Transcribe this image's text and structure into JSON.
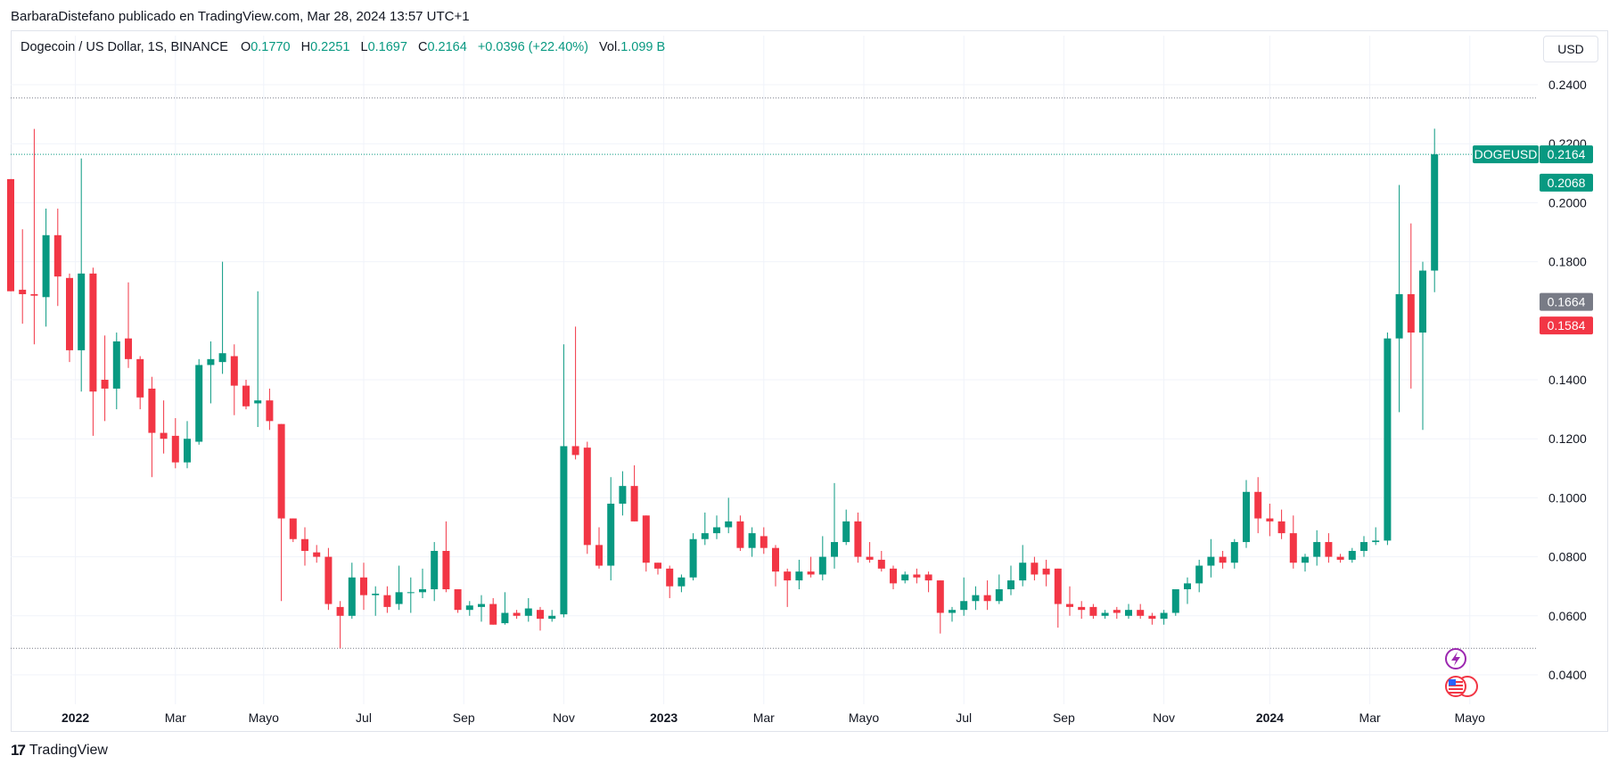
{
  "header": {
    "credit": "BarbaraDistefano publicado en TradingView.com, Mar 28, 2024 13:57 UTC+1"
  },
  "legend": {
    "symbol": "Dogecoin / US Dollar, 1S, BINANCE",
    "open_label": "O",
    "open": "0.1770",
    "high_label": "H",
    "high": "0.2251",
    "low_label": "L",
    "low": "0.1697",
    "close_label": "C",
    "close": "0.2164",
    "change": "+0.0396 (+22.40%)",
    "vol_label": "Vol.",
    "vol": "1.099 B"
  },
  "currency": "USD",
  "footer": {
    "brand": "TradingView",
    "logo": "17"
  },
  "colors": {
    "up": "#089981",
    "down": "#f23645",
    "grid": "#f0f3fa",
    "text": "#131722",
    "gray_badge": "#787b86"
  },
  "chart_data": {
    "type": "candlestick",
    "symbol": "DOGEUSD",
    "timeframe": "1S",
    "y_axis": {
      "min": 0.03,
      "max": 0.25,
      "ticks": [
        "0.2400",
        "0.2200",
        "0.2000",
        "0.1800",
        "0.1400",
        "0.1200",
        "0.1000",
        "0.0800",
        "0.0600",
        "0.0400"
      ]
    },
    "x_axis_labels": [
      {
        "label": "2022",
        "bold": true,
        "x": 5.5
      },
      {
        "label": "Mar",
        "bold": false,
        "x": 14
      },
      {
        "label": "Mayo",
        "bold": false,
        "x": 21.5
      },
      {
        "label": "Jul",
        "bold": false,
        "x": 30
      },
      {
        "label": "Sep",
        "bold": false,
        "x": 38.5
      },
      {
        "label": "Nov",
        "bold": false,
        "x": 47
      },
      {
        "label": "2023",
        "bold": true,
        "x": 55.5
      },
      {
        "label": "Mar",
        "bold": false,
        "x": 64
      },
      {
        "label": "Mayo",
        "bold": false,
        "x": 72.5
      },
      {
        "label": "Jul",
        "bold": false,
        "x": 81
      },
      {
        "label": "Sep",
        "bold": false,
        "x": 89.5
      },
      {
        "label": "Nov",
        "bold": false,
        "x": 98
      },
      {
        "label": "2024",
        "bold": true,
        "x": 107
      },
      {
        "label": "Mar",
        "bold": false,
        "x": 115.5
      },
      {
        "label": "Mayo",
        "bold": false,
        "x": 124
      }
    ],
    "price_badges": [
      {
        "label": "DOGEUSD",
        "value": "0.2164",
        "price": 0.2164,
        "color": "#089981"
      },
      {
        "label": "",
        "value": "0.2068",
        "price": 0.2068,
        "color": "#089981"
      },
      {
        "label": "",
        "value": "0.1664",
        "price": 0.1664,
        "color": "#787b86"
      },
      {
        "label": "",
        "value": "0.1584",
        "price": 0.1584,
        "color": "#f23645"
      }
    ],
    "horizontal_lines": [
      {
        "price": 0.2164,
        "style": "dotted",
        "color": "#089981"
      },
      {
        "price": 0.2355,
        "style": "dotted",
        "color": "#787b86"
      },
      {
        "price": 0.049,
        "style": "dotted",
        "color": "#787b86"
      }
    ],
    "candles": [
      {
        "o": 0.208,
        "h": 0.208,
        "l": 0.17,
        "c": 0.17
      },
      {
        "o": 0.1705,
        "h": 0.191,
        "l": 0.159,
        "c": 0.169
      },
      {
        "o": 0.169,
        "h": 0.225,
        "l": 0.152,
        "c": 0.1685
      },
      {
        "o": 0.168,
        "h": 0.198,
        "l": 0.158,
        "c": 0.189
      },
      {
        "o": 0.189,
        "h": 0.198,
        "l": 0.165,
        "c": 0.175
      },
      {
        "o": 0.1745,
        "h": 0.176,
        "l": 0.146,
        "c": 0.15
      },
      {
        "o": 0.15,
        "h": 0.215,
        "l": 0.136,
        "c": 0.176
      },
      {
        "o": 0.176,
        "h": 0.178,
        "l": 0.121,
        "c": 0.136
      },
      {
        "o": 0.14,
        "h": 0.155,
        "l": 0.126,
        "c": 0.137
      },
      {
        "o": 0.137,
        "h": 0.156,
        "l": 0.13,
        "c": 0.153
      },
      {
        "o": 0.154,
        "h": 0.173,
        "l": 0.144,
        "c": 0.147
      },
      {
        "o": 0.147,
        "h": 0.148,
        "l": 0.13,
        "c": 0.134
      },
      {
        "o": 0.137,
        "h": 0.141,
        "l": 0.107,
        "c": 0.122
      },
      {
        "o": 0.122,
        "h": 0.133,
        "l": 0.115,
        "c": 0.12
      },
      {
        "o": 0.121,
        "h": 0.127,
        "l": 0.11,
        "c": 0.112
      },
      {
        "o": 0.112,
        "h": 0.126,
        "l": 0.11,
        "c": 0.12
      },
      {
        "o": 0.119,
        "h": 0.147,
        "l": 0.118,
        "c": 0.145
      },
      {
        "o": 0.145,
        "h": 0.153,
        "l": 0.132,
        "c": 0.147
      },
      {
        "o": 0.146,
        "h": 0.18,
        "l": 0.142,
        "c": 0.149
      },
      {
        "o": 0.148,
        "h": 0.152,
        "l": 0.128,
        "c": 0.138
      },
      {
        "o": 0.138,
        "h": 0.14,
        "l": 0.13,
        "c": 0.131
      },
      {
        "o": 0.132,
        "h": 0.17,
        "l": 0.124,
        "c": 0.133
      },
      {
        "o": 0.133,
        "h": 0.137,
        "l": 0.123,
        "c": 0.126
      },
      {
        "o": 0.125,
        "h": 0.125,
        "l": 0.065,
        "c": 0.093
      },
      {
        "o": 0.093,
        "h": 0.093,
        "l": 0.085,
        "c": 0.086
      },
      {
        "o": 0.086,
        "h": 0.09,
        "l": 0.077,
        "c": 0.082
      },
      {
        "o": 0.0815,
        "h": 0.084,
        "l": 0.078,
        "c": 0.08
      },
      {
        "o": 0.08,
        "h": 0.083,
        "l": 0.062,
        "c": 0.064
      },
      {
        "o": 0.063,
        "h": 0.065,
        "l": 0.049,
        "c": 0.06
      },
      {
        "o": 0.06,
        "h": 0.078,
        "l": 0.059,
        "c": 0.073
      },
      {
        "o": 0.073,
        "h": 0.078,
        "l": 0.062,
        "c": 0.067
      },
      {
        "o": 0.067,
        "h": 0.07,
        "l": 0.06,
        "c": 0.0675
      },
      {
        "o": 0.067,
        "h": 0.07,
        "l": 0.061,
        "c": 0.063
      },
      {
        "o": 0.064,
        "h": 0.077,
        "l": 0.062,
        "c": 0.068
      },
      {
        "o": 0.068,
        "h": 0.073,
        "l": 0.061,
        "c": 0.068
      },
      {
        "o": 0.068,
        "h": 0.076,
        "l": 0.066,
        "c": 0.069
      },
      {
        "o": 0.069,
        "h": 0.085,
        "l": 0.065,
        "c": 0.082
      },
      {
        "o": 0.082,
        "h": 0.092,
        "l": 0.068,
        "c": 0.069
      },
      {
        "o": 0.069,
        "h": 0.069,
        "l": 0.061,
        "c": 0.062
      },
      {
        "o": 0.062,
        "h": 0.065,
        "l": 0.06,
        "c": 0.0635
      },
      {
        "o": 0.063,
        "h": 0.067,
        "l": 0.058,
        "c": 0.064
      },
      {
        "o": 0.064,
        "h": 0.066,
        "l": 0.057,
        "c": 0.057
      },
      {
        "o": 0.0575,
        "h": 0.068,
        "l": 0.057,
        "c": 0.061
      },
      {
        "o": 0.061,
        "h": 0.062,
        "l": 0.059,
        "c": 0.06
      },
      {
        "o": 0.06,
        "h": 0.066,
        "l": 0.058,
        "c": 0.0625
      },
      {
        "o": 0.062,
        "h": 0.063,
        "l": 0.055,
        "c": 0.059
      },
      {
        "o": 0.059,
        "h": 0.062,
        "l": 0.058,
        "c": 0.06
      },
      {
        "o": 0.0605,
        "h": 0.152,
        "l": 0.0595,
        "c": 0.1175
      },
      {
        "o": 0.1175,
        "h": 0.158,
        "l": 0.113,
        "c": 0.1145
      },
      {
        "o": 0.117,
        "h": 0.119,
        "l": 0.081,
        "c": 0.084
      },
      {
        "o": 0.084,
        "h": 0.09,
        "l": 0.076,
        "c": 0.077
      },
      {
        "o": 0.077,
        "h": 0.107,
        "l": 0.072,
        "c": 0.098
      },
      {
        "o": 0.098,
        "h": 0.109,
        "l": 0.094,
        "c": 0.104
      },
      {
        "o": 0.104,
        "h": 0.111,
        "l": 0.092,
        "c": 0.092
      },
      {
        "o": 0.094,
        "h": 0.094,
        "l": 0.075,
        "c": 0.078
      },
      {
        "o": 0.078,
        "h": 0.078,
        "l": 0.074,
        "c": 0.076
      },
      {
        "o": 0.076,
        "h": 0.077,
        "l": 0.066,
        "c": 0.07
      },
      {
        "o": 0.07,
        "h": 0.074,
        "l": 0.068,
        "c": 0.073
      },
      {
        "o": 0.073,
        "h": 0.088,
        "l": 0.072,
        "c": 0.086
      },
      {
        "o": 0.086,
        "h": 0.095,
        "l": 0.084,
        "c": 0.088
      },
      {
        "o": 0.088,
        "h": 0.094,
        "l": 0.086,
        "c": 0.09
      },
      {
        "o": 0.09,
        "h": 0.1,
        "l": 0.088,
        "c": 0.092
      },
      {
        "o": 0.092,
        "h": 0.094,
        "l": 0.082,
        "c": 0.083
      },
      {
        "o": 0.083,
        "h": 0.09,
        "l": 0.08,
        "c": 0.088
      },
      {
        "o": 0.087,
        "h": 0.09,
        "l": 0.081,
        "c": 0.083
      },
      {
        "o": 0.083,
        "h": 0.084,
        "l": 0.07,
        "c": 0.075
      },
      {
        "o": 0.075,
        "h": 0.076,
        "l": 0.063,
        "c": 0.072
      },
      {
        "o": 0.072,
        "h": 0.079,
        "l": 0.069,
        "c": 0.075
      },
      {
        "o": 0.075,
        "h": 0.08,
        "l": 0.073,
        "c": 0.074
      },
      {
        "o": 0.074,
        "h": 0.087,
        "l": 0.072,
        "c": 0.08
      },
      {
        "o": 0.08,
        "h": 0.105,
        "l": 0.076,
        "c": 0.085
      },
      {
        "o": 0.085,
        "h": 0.096,
        "l": 0.084,
        "c": 0.092
      },
      {
        "o": 0.092,
        "h": 0.095,
        "l": 0.078,
        "c": 0.08
      },
      {
        "o": 0.08,
        "h": 0.085,
        "l": 0.078,
        "c": 0.079
      },
      {
        "o": 0.079,
        "h": 0.082,
        "l": 0.075,
        "c": 0.076
      },
      {
        "o": 0.076,
        "h": 0.077,
        "l": 0.069,
        "c": 0.071
      },
      {
        "o": 0.072,
        "h": 0.075,
        "l": 0.071,
        "c": 0.074
      },
      {
        "o": 0.074,
        "h": 0.076,
        "l": 0.071,
        "c": 0.073
      },
      {
        "o": 0.074,
        "h": 0.075,
        "l": 0.068,
        "c": 0.072
      },
      {
        "o": 0.072,
        "h": 0.072,
        "l": 0.054,
        "c": 0.061
      },
      {
        "o": 0.061,
        "h": 0.063,
        "l": 0.058,
        "c": 0.062
      },
      {
        "o": 0.062,
        "h": 0.073,
        "l": 0.06,
        "c": 0.065
      },
      {
        "o": 0.065,
        "h": 0.07,
        "l": 0.062,
        "c": 0.067
      },
      {
        "o": 0.067,
        "h": 0.072,
        "l": 0.062,
        "c": 0.065
      },
      {
        "o": 0.065,
        "h": 0.074,
        "l": 0.064,
        "c": 0.069
      },
      {
        "o": 0.069,
        "h": 0.077,
        "l": 0.067,
        "c": 0.072
      },
      {
        "o": 0.072,
        "h": 0.084,
        "l": 0.07,
        "c": 0.078
      },
      {
        "o": 0.078,
        "h": 0.08,
        "l": 0.072,
        "c": 0.074
      },
      {
        "o": 0.076,
        "h": 0.079,
        "l": 0.07,
        "c": 0.074
      },
      {
        "o": 0.076,
        "h": 0.076,
        "l": 0.056,
        "c": 0.064
      },
      {
        "o": 0.064,
        "h": 0.07,
        "l": 0.06,
        "c": 0.063
      },
      {
        "o": 0.063,
        "h": 0.065,
        "l": 0.059,
        "c": 0.062
      },
      {
        "o": 0.063,
        "h": 0.064,
        "l": 0.059,
        "c": 0.06
      },
      {
        "o": 0.06,
        "h": 0.062,
        "l": 0.059,
        "c": 0.061
      },
      {
        "o": 0.062,
        "h": 0.063,
        "l": 0.059,
        "c": 0.061
      },
      {
        "o": 0.06,
        "h": 0.064,
        "l": 0.059,
        "c": 0.062
      },
      {
        "o": 0.062,
        "h": 0.064,
        "l": 0.059,
        "c": 0.06
      },
      {
        "o": 0.06,
        "h": 0.061,
        "l": 0.057,
        "c": 0.059
      },
      {
        "o": 0.059,
        "h": 0.062,
        "l": 0.057,
        "c": 0.061
      },
      {
        "o": 0.061,
        "h": 0.069,
        "l": 0.06,
        "c": 0.069
      },
      {
        "o": 0.069,
        "h": 0.073,
        "l": 0.064,
        "c": 0.071
      },
      {
        "o": 0.071,
        "h": 0.079,
        "l": 0.068,
        "c": 0.077
      },
      {
        "o": 0.077,
        "h": 0.086,
        "l": 0.073,
        "c": 0.08
      },
      {
        "o": 0.08,
        "h": 0.082,
        "l": 0.076,
        "c": 0.078
      },
      {
        "o": 0.078,
        "h": 0.086,
        "l": 0.076,
        "c": 0.085
      },
      {
        "o": 0.085,
        "h": 0.106,
        "l": 0.083,
        "c": 0.102
      },
      {
        "o": 0.102,
        "h": 0.107,
        "l": 0.088,
        "c": 0.093
      },
      {
        "o": 0.093,
        "h": 0.098,
        "l": 0.087,
        "c": 0.092
      },
      {
        "o": 0.092,
        "h": 0.096,
        "l": 0.086,
        "c": 0.088
      },
      {
        "o": 0.088,
        "h": 0.094,
        "l": 0.076,
        "c": 0.078
      },
      {
        "o": 0.078,
        "h": 0.081,
        "l": 0.075,
        "c": 0.08
      },
      {
        "o": 0.08,
        "h": 0.089,
        "l": 0.077,
        "c": 0.085
      },
      {
        "o": 0.085,
        "h": 0.088,
        "l": 0.078,
        "c": 0.08
      },
      {
        "o": 0.08,
        "h": 0.081,
        "l": 0.078,
        "c": 0.079
      },
      {
        "o": 0.079,
        "h": 0.083,
        "l": 0.078,
        "c": 0.082
      },
      {
        "o": 0.082,
        "h": 0.087,
        "l": 0.08,
        "c": 0.085
      },
      {
        "o": 0.085,
        "h": 0.09,
        "l": 0.084,
        "c": 0.0855
      },
      {
        "o": 0.0855,
        "h": 0.156,
        "l": 0.084,
        "c": 0.154
      },
      {
        "o": 0.154,
        "h": 0.206,
        "l": 0.129,
        "c": 0.169
      },
      {
        "o": 0.169,
        "h": 0.193,
        "l": 0.137,
        "c": 0.156
      },
      {
        "o": 0.156,
        "h": 0.18,
        "l": 0.123,
        "c": 0.177
      },
      {
        "o": 0.177,
        "h": 0.2251,
        "l": 0.1697,
        "c": 0.2164
      }
    ]
  }
}
